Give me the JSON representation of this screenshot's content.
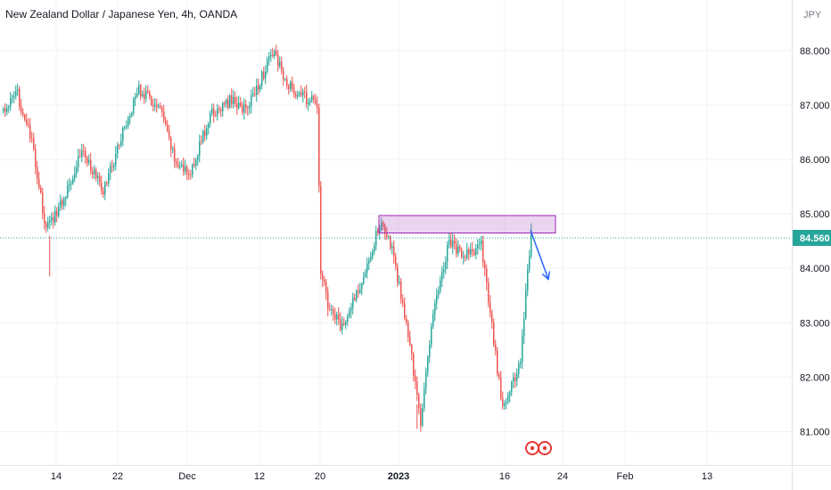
{
  "chart_data": {
    "type": "candlestick",
    "title": "New Zealand Dollar / Japanese Yen, 4h, OANDA",
    "currency": "JPY",
    "ylim": [
      80.5,
      88.8
    ],
    "y_ticks": [
      81,
      82,
      83,
      84,
      85,
      86,
      87,
      88
    ],
    "y_tick_labels": [
      "81.000",
      "82.000",
      "83.000",
      "84.000",
      "85.000",
      "86.000",
      "87.000",
      "88.000"
    ],
    "x_tick_labels": [
      "14",
      "22",
      "Dec",
      "12",
      "20",
      "2023",
      "16",
      "24",
      "Feb",
      "13"
    ],
    "last_price": 84.56,
    "last_price_label": "84.560",
    "series_keypoints": [
      {
        "i": 0,
        "p": 86.9
      },
      {
        "i": 8,
        "p": 87.2
      },
      {
        "i": 16,
        "p": 86.3
      },
      {
        "i": 24,
        "p": 84.7
      },
      {
        "i": 34,
        "p": 85.3
      },
      {
        "i": 44,
        "p": 86.2
      },
      {
        "i": 56,
        "p": 85.4
      },
      {
        "i": 68,
        "p": 86.6
      },
      {
        "i": 76,
        "p": 87.3
      },
      {
        "i": 88,
        "p": 86.9
      },
      {
        "i": 96,
        "p": 86.0
      },
      {
        "i": 104,
        "p": 85.7
      },
      {
        "i": 116,
        "p": 86.8
      },
      {
        "i": 128,
        "p": 87.1
      },
      {
        "i": 136,
        "p": 86.9
      },
      {
        "i": 146,
        "p": 87.6
      },
      {
        "i": 152,
        "p": 88.0
      },
      {
        "i": 158,
        "p": 87.4
      },
      {
        "i": 166,
        "p": 87.2
      },
      {
        "i": 176,
        "p": 87.0
      },
      {
        "i": 178,
        "p": 84.0
      },
      {
        "i": 182,
        "p": 83.3
      },
      {
        "i": 190,
        "p": 82.9
      },
      {
        "i": 200,
        "p": 83.7
      },
      {
        "i": 212,
        "p": 84.9
      },
      {
        "i": 218,
        "p": 84.3
      },
      {
        "i": 226,
        "p": 83.0
      },
      {
        "i": 234,
        "p": 81.2
      },
      {
        "i": 242,
        "p": 83.4
      },
      {
        "i": 250,
        "p": 84.5
      },
      {
        "i": 258,
        "p": 84.2
      },
      {
        "i": 268,
        "p": 84.4
      },
      {
        "i": 276,
        "p": 82.4
      },
      {
        "i": 280,
        "p": 81.4
      },
      {
        "i": 290,
        "p": 82.3
      },
      {
        "i": 296,
        "p": 84.7
      }
    ],
    "zone": {
      "from_index": 211,
      "to_index": 310,
      "low": 84.65,
      "high": 84.97
    },
    "arrow": {
      "from_index": 296,
      "from_price": 84.7,
      "to_index": 306,
      "to_price": 83.8
    },
    "colors": {
      "up": "#26a69a",
      "down": "#ef5350",
      "zone": "#9c27b0",
      "arrow": "#2962ff",
      "price_line": "#26a69a"
    }
  }
}
